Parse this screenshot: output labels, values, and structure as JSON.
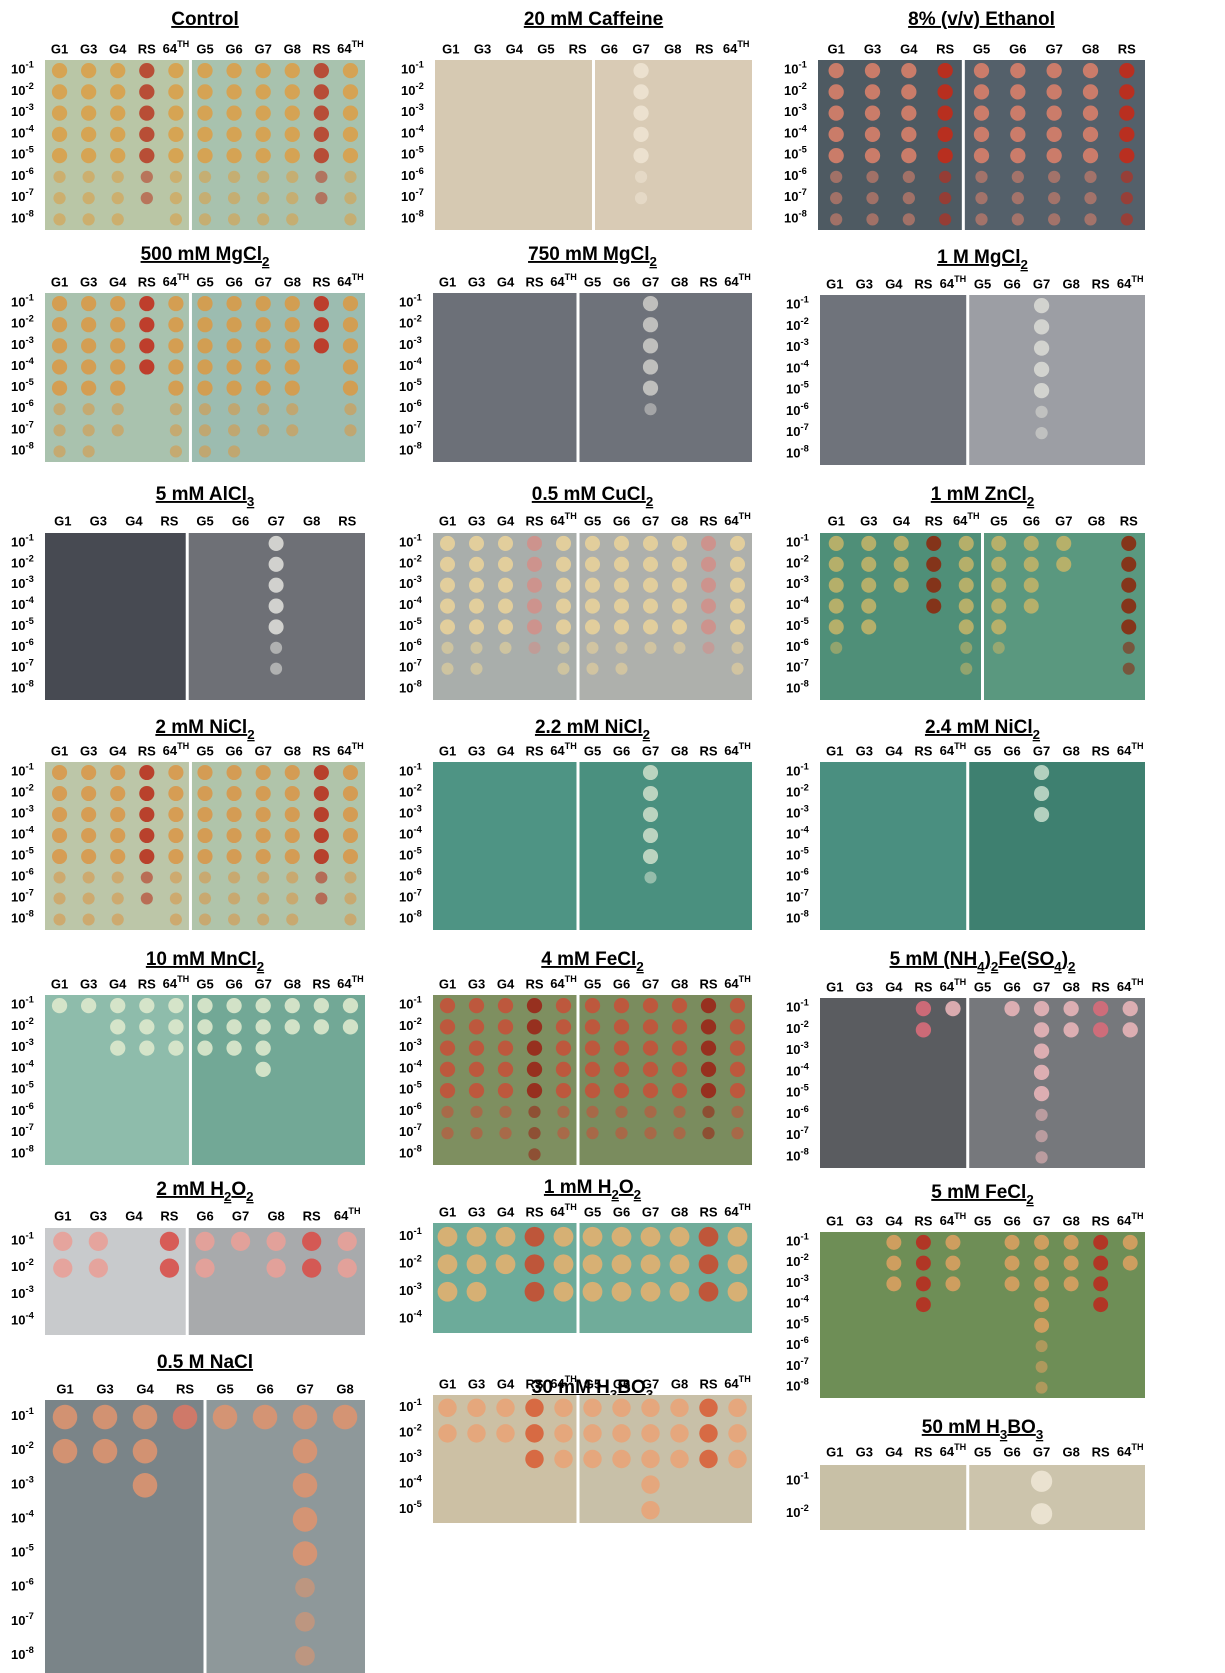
{
  "panels": [
    {
      "title": [
        "Control"
      ],
      "columns": [
        "G1",
        "G3",
        "G4",
        "RS",
        {
          "text": "64",
          "sup": "TH"
        },
        "G5",
        "G6",
        "G7",
        "G8",
        "RS",
        {
          "text": "64",
          "sup": "TH"
        }
      ],
      "rows": [
        {
          "base": "10",
          "sup": "-1"
        },
        {
          "base": "10",
          "sup": "-2"
        },
        {
          "base": "10",
          "sup": "-3"
        },
        {
          "base": "10",
          "sup": "-4"
        },
        {
          "base": "10",
          "sup": "-5"
        },
        {
          "base": "10",
          "sup": "-6"
        },
        {
          "base": "10",
          "sup": "-7"
        },
        {
          "base": "10",
          "sup": "-8"
        }
      ]
    },
    {
      "title": [
        "20 mM Caffeine"
      ],
      "columns": [
        "G1",
        "G3",
        "G4",
        "G5",
        "RS",
        "G6",
        "G7",
        "G8",
        "RS",
        {
          "text": "64",
          "sup": "TH"
        }
      ],
      "rows": [
        {
          "base": "10",
          "sup": "-1"
        },
        {
          "base": "10",
          "sup": "-2"
        },
        {
          "base": "10",
          "sup": "-3"
        },
        {
          "base": "10",
          "sup": "-4"
        },
        {
          "base": "10",
          "sup": "-5"
        },
        {
          "base": "10",
          "sup": "-6"
        },
        {
          "base": "10",
          "sup": "-7"
        },
        {
          "base": "10",
          "sup": "-8"
        }
      ]
    },
    {
      "title": [
        "8% (v/v) Ethanol"
      ],
      "columns": [
        "G1",
        "G3",
        "G4",
        "RS",
        "G5",
        "G6",
        "G7",
        "G8",
        "RS"
      ],
      "rows": [
        {
          "base": "10",
          "sup": "-1"
        },
        {
          "base": "10",
          "sup": "-2"
        },
        {
          "base": "10",
          "sup": "-3"
        },
        {
          "base": "10",
          "sup": "-4"
        },
        {
          "base": "10",
          "sup": "-5"
        },
        {
          "base": "10",
          "sup": "-6"
        },
        {
          "base": "10",
          "sup": "-7"
        },
        {
          "base": "10",
          "sup": "-8"
        }
      ]
    },
    {
      "title": [
        "500 mM MgCl",
        {
          "sub": "2"
        }
      ],
      "columns": [
        "G1",
        "G3",
        "G4",
        "RS",
        {
          "text": "64",
          "sup": "TH"
        },
        "G5",
        "G6",
        "G7",
        "G8",
        "RS",
        {
          "text": "64",
          "sup": "TH"
        }
      ],
      "rows": [
        {
          "base": "10",
          "sup": "-1"
        },
        {
          "base": "10",
          "sup": "-2"
        },
        {
          "base": "10",
          "sup": "-3"
        },
        {
          "base": "10",
          "sup": "-4"
        },
        {
          "base": "10",
          "sup": "-5"
        },
        {
          "base": "10",
          "sup": "-6"
        },
        {
          "base": "10",
          "sup": "-7"
        },
        {
          "base": "10",
          "sup": "-8"
        }
      ]
    },
    {
      "title": [
        "750 mM MgCl",
        {
          "sub": "2"
        }
      ],
      "columns": [
        "G1",
        "G3",
        "G4",
        "RS",
        {
          "text": "64",
          "sup": "TH"
        },
        "G5",
        "G6",
        "G7",
        "G8",
        "RS",
        {
          "text": "64",
          "sup": "TH"
        }
      ],
      "rows": [
        {
          "base": "10",
          "sup": "-1"
        },
        {
          "base": "10",
          "sup": "-2"
        },
        {
          "base": "10",
          "sup": "-3"
        },
        {
          "base": "10",
          "sup": "-4"
        },
        {
          "base": "10",
          "sup": "-5"
        },
        {
          "base": "10",
          "sup": "-6"
        },
        {
          "base": "10",
          "sup": "-7"
        },
        {
          "base": "10",
          "sup": "-8"
        }
      ]
    },
    {
      "title": [
        "1 M MgCl",
        {
          "sub": "2"
        }
      ],
      "columns": [
        "G1",
        "G3",
        "G4",
        "RS",
        {
          "text": "64",
          "sup": "TH"
        },
        "G5",
        "G6",
        "G7",
        "G8",
        "RS",
        {
          "text": "64",
          "sup": "TH"
        }
      ],
      "rows": [
        {
          "base": "10",
          "sup": "-1"
        },
        {
          "base": "10",
          "sup": "-2"
        },
        {
          "base": "10",
          "sup": "-3"
        },
        {
          "base": "10",
          "sup": "-4"
        },
        {
          "base": "10",
          "sup": "-5"
        },
        {
          "base": "10",
          "sup": "-6"
        },
        {
          "base": "10",
          "sup": "-7"
        },
        {
          "base": "10",
          "sup": "-8"
        }
      ]
    },
    {
      "title": [
        "5 mM AlCl",
        {
          "sub": "3"
        }
      ],
      "columns": [
        "G1",
        "G3",
        "G4",
        "RS",
        "G5",
        "G6",
        "G7",
        "G8",
        "RS"
      ],
      "rows": [
        {
          "base": "10",
          "sup": "-1"
        },
        {
          "base": "10",
          "sup": "-2"
        },
        {
          "base": "10",
          "sup": "-3"
        },
        {
          "base": "10",
          "sup": "-4"
        },
        {
          "base": "10",
          "sup": "-5"
        },
        {
          "base": "10",
          "sup": "-6"
        },
        {
          "base": "10",
          "sup": "-7"
        },
        {
          "base": "10",
          "sup": "-8"
        }
      ]
    },
    {
      "title": [
        "0.5 mM CuCl",
        {
          "sub": "2"
        }
      ],
      "columns": [
        "G1",
        "G3",
        "G4",
        "RS",
        {
          "text": "64",
          "sup": "TH"
        },
        "G5",
        "G6",
        "G7",
        "G8",
        "RS",
        {
          "text": "64",
          "sup": "TH"
        }
      ],
      "rows": [
        {
          "base": "10",
          "sup": "-1"
        },
        {
          "base": "10",
          "sup": "-2"
        },
        {
          "base": "10",
          "sup": "-3"
        },
        {
          "base": "10",
          "sup": "-4"
        },
        {
          "base": "10",
          "sup": "-5"
        },
        {
          "base": "10",
          "sup": "-6"
        },
        {
          "base": "10",
          "sup": "-7"
        },
        {
          "base": "10",
          "sup": "-8"
        }
      ]
    },
    {
      "title": [
        "1 mM ZnCl",
        {
          "sub": "2"
        }
      ],
      "columns": [
        "G1",
        "G3",
        "G4",
        "RS",
        {
          "text": "64",
          "sup": "TH"
        },
        "G5",
        "G6",
        "G7",
        "G8",
        "RS"
      ],
      "rows": [
        {
          "base": "10",
          "sup": "-1"
        },
        {
          "base": "10",
          "sup": "-2"
        },
        {
          "base": "10",
          "sup": "-3"
        },
        {
          "base": "10",
          "sup": "-4"
        },
        {
          "base": "10",
          "sup": "-5"
        },
        {
          "base": "10",
          "sup": "-6"
        },
        {
          "base": "10",
          "sup": "-7"
        },
        {
          "base": "10",
          "sup": "-8"
        }
      ]
    },
    {
      "title": [
        "2 mM NiCl",
        {
          "sub": "2"
        }
      ],
      "columns": [
        "G1",
        "G3",
        "G4",
        "RS",
        {
          "text": "64",
          "sup": "TH"
        },
        "G5",
        "G6",
        "G7",
        "G8",
        "RS",
        {
          "text": "64",
          "sup": "TH"
        }
      ],
      "rows": [
        {
          "base": "10",
          "sup": "-1"
        },
        {
          "base": "10",
          "sup": "-2"
        },
        {
          "base": "10",
          "sup": "-3"
        },
        {
          "base": "10",
          "sup": "-4"
        },
        {
          "base": "10",
          "sup": "-5"
        },
        {
          "base": "10",
          "sup": "-6"
        },
        {
          "base": "10",
          "sup": "-7"
        },
        {
          "base": "10",
          "sup": "-8"
        }
      ]
    },
    {
      "title": [
        "2.2 mM NiCl",
        {
          "sub": "2"
        }
      ],
      "columns": [
        "G1",
        "G3",
        "G4",
        "RS",
        {
          "text": "64",
          "sup": "TH"
        },
        "G5",
        "G6",
        "G7",
        "G8",
        "RS",
        {
          "text": "64",
          "sup": "TH"
        }
      ],
      "rows": [
        {
          "base": "10",
          "sup": "-1"
        },
        {
          "base": "10",
          "sup": "-2"
        },
        {
          "base": "10",
          "sup": "-3"
        },
        {
          "base": "10",
          "sup": "-4"
        },
        {
          "base": "10",
          "sup": "-5"
        },
        {
          "base": "10",
          "sup": "-6"
        },
        {
          "base": "10",
          "sup": "-7"
        },
        {
          "base": "10",
          "sup": "-8"
        }
      ]
    },
    {
      "title": [
        "2.4 mM NiCl",
        {
          "sub": "2"
        }
      ],
      "columns": [
        "G1",
        "G3",
        "G4",
        "RS",
        {
          "text": "64",
          "sup": "TH"
        },
        "G5",
        "G6",
        "G7",
        "G8",
        "RS",
        {
          "text": "64",
          "sup": "TH"
        }
      ],
      "rows": [
        {
          "base": "10",
          "sup": "-1"
        },
        {
          "base": "10",
          "sup": "-2"
        },
        {
          "base": "10",
          "sup": "-3"
        },
        {
          "base": "10",
          "sup": "-4"
        },
        {
          "base": "10",
          "sup": "-5"
        },
        {
          "base": "10",
          "sup": "-6"
        },
        {
          "base": "10",
          "sup": "-7"
        },
        {
          "base": "10",
          "sup": "-8"
        }
      ]
    },
    {
      "title": [
        "10 mM MnCl",
        {
          "sub": "2"
        }
      ],
      "columns": [
        "G1",
        "G3",
        "G4",
        "RS",
        {
          "text": "64",
          "sup": "TH"
        },
        "G5",
        "G6",
        "G7",
        "G8",
        "RS",
        {
          "text": "64",
          "sup": "TH"
        }
      ],
      "rows": [
        {
          "base": "10",
          "sup": "-1"
        },
        {
          "base": "10",
          "sup": "-2"
        },
        {
          "base": "10",
          "sup": "-3"
        },
        {
          "base": "10",
          "sup": "-4"
        },
        {
          "base": "10",
          "sup": "-5"
        },
        {
          "base": "10",
          "sup": "-6"
        },
        {
          "base": "10",
          "sup": "-7"
        },
        {
          "base": "10",
          "sup": "-8"
        }
      ]
    },
    {
      "title": [
        "4 mM FeCl",
        {
          "sub": "2"
        }
      ],
      "columns": [
        "G1",
        "G3",
        "G4",
        "RS",
        {
          "text": "64",
          "sup": "TH"
        },
        "G5",
        "G6",
        "G7",
        "G8",
        "RS",
        {
          "text": "64",
          "sup": "TH"
        }
      ],
      "rows": [
        {
          "base": "10",
          "sup": "-1"
        },
        {
          "base": "10",
          "sup": "-2"
        },
        {
          "base": "10",
          "sup": "-3"
        },
        {
          "base": "10",
          "sup": "-4"
        },
        {
          "base": "10",
          "sup": "-5"
        },
        {
          "base": "10",
          "sup": "-6"
        },
        {
          "base": "10",
          "sup": "-7"
        },
        {
          "base": "10",
          "sup": "-8"
        }
      ]
    },
    {
      "title": [
        "5 mM (NH",
        {
          "sub": "4"
        },
        ")",
        {
          "sub": "2"
        },
        "Fe(SO",
        {
          "sub": "4"
        },
        ")",
        {
          "sub": "2"
        }
      ],
      "columns": [
        "G1",
        "G3",
        "G4",
        "RS",
        {
          "text": "64",
          "sup": "TH"
        },
        "G5",
        "G6",
        "G7",
        "G8",
        "RS",
        {
          "text": "64",
          "sup": "TH"
        }
      ],
      "rows": [
        {
          "base": "10",
          "sup": "-1"
        },
        {
          "base": "10",
          "sup": "-2"
        },
        {
          "base": "10",
          "sup": "-3"
        },
        {
          "base": "10",
          "sup": "-4"
        },
        {
          "base": "10",
          "sup": "-5"
        },
        {
          "base": "10",
          "sup": "-6"
        },
        {
          "base": "10",
          "sup": "-7"
        },
        {
          "base": "10",
          "sup": "-8"
        }
      ]
    },
    {
      "title": [
        "2 mM H",
        {
          "sub": "2"
        },
        "O",
        {
          "sub": "2"
        }
      ],
      "columns": [
        "G1",
        "G3",
        "G4",
        "RS",
        "G6",
        "G7",
        "G8",
        "RS",
        {
          "text": "64",
          "sup": "TH"
        }
      ],
      "rows": [
        {
          "base": "10",
          "sup": "-1"
        },
        {
          "base": "10",
          "sup": "-2"
        },
        {
          "base": "10",
          "sup": "-3"
        },
        {
          "base": "10",
          "sup": "-4"
        }
      ]
    },
    {
      "title": [
        "1 mM H",
        {
          "sub": "2"
        },
        "O",
        {
          "sub": "2"
        }
      ],
      "columns": [
        "G1",
        "G3",
        "G4",
        "RS",
        {
          "text": "64",
          "sup": "TH"
        },
        "G5",
        "G6",
        "G7",
        "G8",
        "RS",
        {
          "text": "64",
          "sup": "TH"
        }
      ],
      "rows": [
        {
          "base": "10",
          "sup": "-1"
        },
        {
          "base": "10",
          "sup": "-2"
        },
        {
          "base": "10",
          "sup": "-3"
        },
        {
          "base": "10",
          "sup": "-4"
        }
      ]
    },
    {
      "title": [
        "5 mM FeCl",
        {
          "sub": "2"
        }
      ],
      "columns": [
        "G1",
        "G3",
        "G4",
        "RS",
        {
          "text": "64",
          "sup": "TH"
        },
        "G5",
        "G6",
        "G7",
        "G8",
        "RS",
        {
          "text": "64",
          "sup": "TH"
        }
      ],
      "rows": [
        {
          "base": "10",
          "sup": "-1"
        },
        {
          "base": "10",
          "sup": "-2"
        },
        {
          "base": "10",
          "sup": "-3"
        },
        {
          "base": "10",
          "sup": "-4"
        },
        {
          "base": "10",
          "sup": "-5"
        },
        {
          "base": "10",
          "sup": "-6"
        },
        {
          "base": "10",
          "sup": "-7"
        },
        {
          "base": "10",
          "sup": "-8"
        }
      ]
    },
    {
      "title": [
        "0.5 M NaCl"
      ],
      "columns": [
        "G1",
        "G3",
        "G4",
        "RS",
        "G5",
        "G6",
        "G7",
        "G8"
      ],
      "rows": [
        {
          "base": "10",
          "sup": "-1"
        },
        {
          "base": "10",
          "sup": "-2"
        },
        {
          "base": "10",
          "sup": "-3"
        },
        {
          "base": "10",
          "sup": "-4"
        },
        {
          "base": "10",
          "sup": "-5"
        },
        {
          "base": "10",
          "sup": "-6"
        },
        {
          "base": "10",
          "sup": "-7"
        },
        {
          "base": "10",
          "sup": "-8"
        }
      ]
    },
    {
      "title": [
        "30 mM H",
        {
          "sub": "3"
        },
        "BO",
        {
          "sub": "3"
        }
      ],
      "columns": [
        "G1",
        "G3",
        "G4",
        "RS",
        {
          "text": "64",
          "sup": "TH"
        },
        "G5",
        "G6",
        "G7",
        "G8",
        "RS",
        {
          "text": "64",
          "sup": "TH"
        }
      ],
      "rows": [
        {
          "base": "10",
          "sup": "-1"
        },
        {
          "base": "10",
          "sup": "-2"
        },
        {
          "base": "10",
          "sup": "-3"
        },
        {
          "base": "10",
          "sup": "-4"
        },
        {
          "base": "10",
          "sup": "-5"
        }
      ]
    },
    {
      "title": [
        "50 mM H",
        {
          "sub": "3"
        },
        "BO",
        {
          "sub": "3"
        }
      ],
      "columns": [
        "G1",
        "G3",
        "G4",
        "RS",
        {
          "text": "64",
          "sup": "TH"
        },
        "G5",
        "G6",
        "G7",
        "G8",
        "RS",
        {
          "text": "64",
          "sup": "TH"
        }
      ],
      "rows": [
        {
          "base": "10",
          "sup": "-1"
        },
        {
          "base": "10",
          "sup": "-2"
        }
      ]
    }
  ]
}
